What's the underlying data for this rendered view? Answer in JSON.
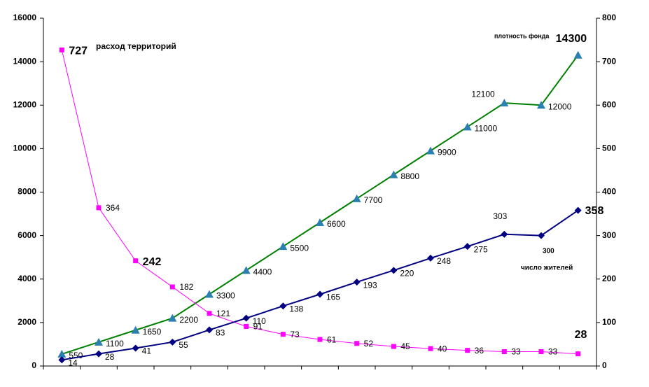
{
  "chart_data": {
    "type": "line",
    "categories": [
      null,
      null,
      null,
      null,
      null,
      null,
      null,
      null,
      null,
      null,
      null,
      null,
      null,
      null,
      null
    ],
    "ylim": [
      0,
      16000
    ],
    "yticks": [
      0,
      2000,
      4000,
      6000,
      8000,
      10000,
      12000,
      14000,
      16000
    ],
    "y2lim": [
      0,
      800
    ],
    "y2ticks": [
      0,
      100,
      200,
      300,
      400,
      500,
      600,
      700,
      800
    ],
    "grid": false,
    "series": [
      {
        "name": "плотность фонда",
        "color": "#008000",
        "marker_color": "#2a80b0",
        "marker": "triangle",
        "values": [
          550,
          1100,
          1650,
          2200,
          3300,
          4400,
          5500,
          6600,
          7700,
          8800,
          9900,
          11000,
          12100,
          12000,
          14300
        ]
      },
      {
        "name": "расход территорий",
        "color": "#ff00ff",
        "marker_color": "#ff00ff",
        "marker": "square",
        "axis": "y2",
        "values": [
          727,
          364,
          242,
          182,
          121,
          91,
          73,
          61,
          52,
          45,
          40,
          36,
          33,
          33,
          28
        ]
      },
      {
        "name": "число жителей",
        "color": "#000080",
        "marker_color": "#000080",
        "marker": "diamond",
        "axis": "y2",
        "values": [
          14,
          28,
          41,
          55,
          83,
          110,
          138,
          165,
          193,
          220,
          248,
          275,
          303,
          300,
          358
        ]
      }
    ]
  }
}
